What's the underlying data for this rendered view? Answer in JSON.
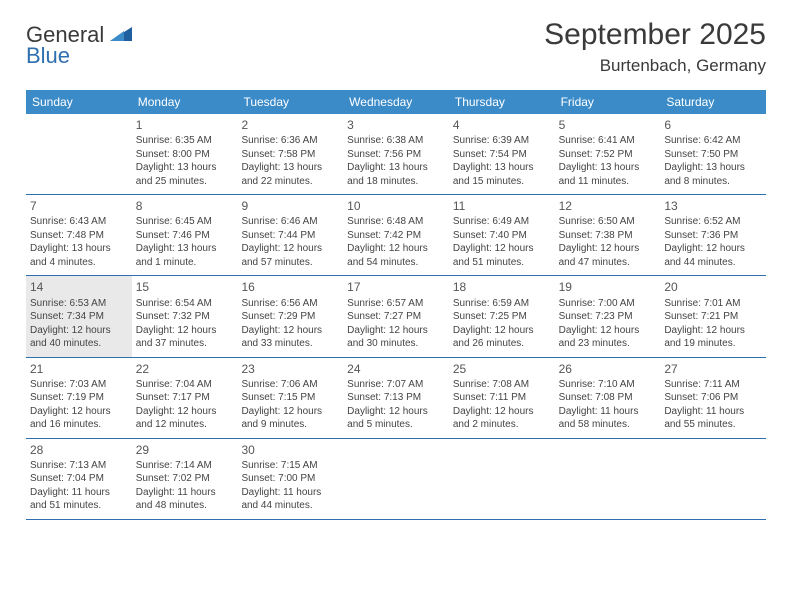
{
  "logo": {
    "text_general": "General",
    "text_blue": "Blue"
  },
  "header": {
    "title": "September 2025",
    "location": "Burtenbach, Germany"
  },
  "colors": {
    "header_bg": "#3b8bc9",
    "divider": "#2f6faf",
    "today_bg": "#e9e9e9",
    "text": "#444444",
    "title": "#3a3a3a",
    "page_bg": "#ffffff"
  },
  "weekdays": [
    "Sunday",
    "Monday",
    "Tuesday",
    "Wednesday",
    "Thursday",
    "Friday",
    "Saturday"
  ],
  "weeks": [
    [
      {
        "num": "",
        "sunrise": "",
        "sunset": "",
        "daylight": ""
      },
      {
        "num": "1",
        "sunrise": "6:35 AM",
        "sunset": "8:00 PM",
        "daylight": "13 hours and 25 minutes."
      },
      {
        "num": "2",
        "sunrise": "6:36 AM",
        "sunset": "7:58 PM",
        "daylight": "13 hours and 22 minutes."
      },
      {
        "num": "3",
        "sunrise": "6:38 AM",
        "sunset": "7:56 PM",
        "daylight": "13 hours and 18 minutes."
      },
      {
        "num": "4",
        "sunrise": "6:39 AM",
        "sunset": "7:54 PM",
        "daylight": "13 hours and 15 minutes."
      },
      {
        "num": "5",
        "sunrise": "6:41 AM",
        "sunset": "7:52 PM",
        "daylight": "13 hours and 11 minutes."
      },
      {
        "num": "6",
        "sunrise": "6:42 AM",
        "sunset": "7:50 PM",
        "daylight": "13 hours and 8 minutes."
      }
    ],
    [
      {
        "num": "7",
        "sunrise": "6:43 AM",
        "sunset": "7:48 PM",
        "daylight": "13 hours and 4 minutes."
      },
      {
        "num": "8",
        "sunrise": "6:45 AM",
        "sunset": "7:46 PM",
        "daylight": "13 hours and 1 minute."
      },
      {
        "num": "9",
        "sunrise": "6:46 AM",
        "sunset": "7:44 PM",
        "daylight": "12 hours and 57 minutes."
      },
      {
        "num": "10",
        "sunrise": "6:48 AM",
        "sunset": "7:42 PM",
        "daylight": "12 hours and 54 minutes."
      },
      {
        "num": "11",
        "sunrise": "6:49 AM",
        "sunset": "7:40 PM",
        "daylight": "12 hours and 51 minutes."
      },
      {
        "num": "12",
        "sunrise": "6:50 AM",
        "sunset": "7:38 PM",
        "daylight": "12 hours and 47 minutes."
      },
      {
        "num": "13",
        "sunrise": "6:52 AM",
        "sunset": "7:36 PM",
        "daylight": "12 hours and 44 minutes."
      }
    ],
    [
      {
        "num": "14",
        "sunrise": "6:53 AM",
        "sunset": "7:34 PM",
        "daylight": "12 hours and 40 minutes.",
        "today": true
      },
      {
        "num": "15",
        "sunrise": "6:54 AM",
        "sunset": "7:32 PM",
        "daylight": "12 hours and 37 minutes."
      },
      {
        "num": "16",
        "sunrise": "6:56 AM",
        "sunset": "7:29 PM",
        "daylight": "12 hours and 33 minutes."
      },
      {
        "num": "17",
        "sunrise": "6:57 AM",
        "sunset": "7:27 PM",
        "daylight": "12 hours and 30 minutes."
      },
      {
        "num": "18",
        "sunrise": "6:59 AM",
        "sunset": "7:25 PM",
        "daylight": "12 hours and 26 minutes."
      },
      {
        "num": "19",
        "sunrise": "7:00 AM",
        "sunset": "7:23 PM",
        "daylight": "12 hours and 23 minutes."
      },
      {
        "num": "20",
        "sunrise": "7:01 AM",
        "sunset": "7:21 PM",
        "daylight": "12 hours and 19 minutes."
      }
    ],
    [
      {
        "num": "21",
        "sunrise": "7:03 AM",
        "sunset": "7:19 PM",
        "daylight": "12 hours and 16 minutes."
      },
      {
        "num": "22",
        "sunrise": "7:04 AM",
        "sunset": "7:17 PM",
        "daylight": "12 hours and 12 minutes."
      },
      {
        "num": "23",
        "sunrise": "7:06 AM",
        "sunset": "7:15 PM",
        "daylight": "12 hours and 9 minutes."
      },
      {
        "num": "24",
        "sunrise": "7:07 AM",
        "sunset": "7:13 PM",
        "daylight": "12 hours and 5 minutes."
      },
      {
        "num": "25",
        "sunrise": "7:08 AM",
        "sunset": "7:11 PM",
        "daylight": "12 hours and 2 minutes."
      },
      {
        "num": "26",
        "sunrise": "7:10 AM",
        "sunset": "7:08 PM",
        "daylight": "11 hours and 58 minutes."
      },
      {
        "num": "27",
        "sunrise": "7:11 AM",
        "sunset": "7:06 PM",
        "daylight": "11 hours and 55 minutes."
      }
    ],
    [
      {
        "num": "28",
        "sunrise": "7:13 AM",
        "sunset": "7:04 PM",
        "daylight": "11 hours and 51 minutes."
      },
      {
        "num": "29",
        "sunrise": "7:14 AM",
        "sunset": "7:02 PM",
        "daylight": "11 hours and 48 minutes."
      },
      {
        "num": "30",
        "sunrise": "7:15 AM",
        "sunset": "7:00 PM",
        "daylight": "11 hours and 44 minutes."
      },
      {
        "num": "",
        "sunrise": "",
        "sunset": "",
        "daylight": ""
      },
      {
        "num": "",
        "sunrise": "",
        "sunset": "",
        "daylight": ""
      },
      {
        "num": "",
        "sunrise": "",
        "sunset": "",
        "daylight": ""
      },
      {
        "num": "",
        "sunrise": "",
        "sunset": "",
        "daylight": ""
      }
    ]
  ],
  "labels": {
    "sunrise": "Sunrise:",
    "sunset": "Sunset:",
    "daylight": "Daylight:"
  }
}
